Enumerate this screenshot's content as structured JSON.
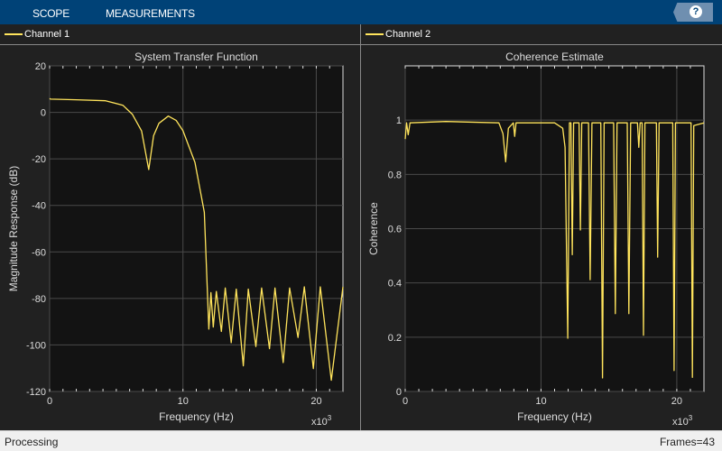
{
  "toolbar": {
    "tabs": [
      "SCOPE",
      "MEASUREMENTS"
    ],
    "help_icon": "question-icon",
    "accent": "#004277"
  },
  "legend": {
    "channel1": "Channel 1",
    "channel2": "Channel 2",
    "line_color": "#ffe45c"
  },
  "status": {
    "left": "Processing",
    "right": "Frames=43"
  },
  "chart_data": [
    {
      "type": "line",
      "title": "System Transfer Function",
      "xlabel": "Frequency (Hz)",
      "ylabel": "Magnitude Response (dB)",
      "x_multiplier": "x10",
      "x_multiplier_exp": "3",
      "xlim": [
        0,
        22
      ],
      "ylim": [
        -120,
        20
      ],
      "xticks": [
        0,
        10,
        20
      ],
      "yticks": [
        20,
        0,
        -20,
        -40,
        -60,
        -80,
        -100,
        -120
      ],
      "grid": true,
      "series": [
        {
          "x": [
            0,
            0.07,
            2,
            4.2,
            5.5,
            6.2,
            6.9,
            7.43,
            7.8,
            8.2,
            8.9,
            9.5,
            10,
            10.9,
            11.6,
            11.94,
            12.1,
            12.27,
            12.5,
            12.88,
            13.17,
            13.62,
            14.0,
            14.53,
            14.9,
            15.47,
            15.9,
            16.49,
            16.9,
            17.52,
            18.0,
            18.63,
            19.1,
            19.78,
            20.3,
            21.13,
            22
          ],
          "y": [
            6,
            5.7,
            5.4,
            5,
            3,
            -0.8,
            -8,
            -24.6,
            -10,
            -4.7,
            -1.6,
            -3.5,
            -7.9,
            -21.5,
            -43,
            -93.2,
            -77.5,
            -92.3,
            -77,
            -94.2,
            -75.5,
            -99,
            -76,
            -109,
            -76,
            -100.7,
            -75.5,
            -101.6,
            -75.5,
            -107.6,
            -75.5,
            -96.8,
            -75,
            -110.2,
            -75,
            -115.2,
            -75
          ]
        }
      ]
    },
    {
      "type": "line",
      "title": "Coherence Estimate",
      "xlabel": "Frequency (Hz)",
      "ylabel": "Coherence",
      "x_multiplier": "x10",
      "x_multiplier_exp": "3",
      "xlim": [
        0,
        22
      ],
      "ylim": [
        0,
        1.2
      ],
      "xticks": [
        0,
        10,
        20
      ],
      "yticks": [
        0,
        0.2,
        0.4,
        0.6,
        0.8,
        1
      ],
      "ytick_labels": [
        "0",
        "0.2",
        "0.4",
        "0.6",
        "0.8",
        "1"
      ],
      "grid": true,
      "series": [
        {
          "x": [
            0,
            0.1,
            0.22,
            0.35,
            3,
            6.9,
            7.2,
            7.4,
            7.6,
            7.96,
            8.06,
            8.16,
            11,
            11.6,
            11.77,
            11.97,
            12.1,
            12.2,
            12.3,
            12.4,
            12.8,
            12.9,
            13.0,
            13.5,
            13.62,
            13.75,
            14.4,
            14.53,
            14.65,
            15.35,
            15.47,
            15.6,
            16.35,
            16.47,
            16.6,
            17.1,
            17.2,
            17.3,
            17.45,
            17.55,
            17.65,
            18.5,
            18.59,
            18.7,
            19.7,
            19.8,
            19.9,
            21.05,
            21.15,
            21.25,
            22
          ],
          "y": [
            0.93,
            0.99,
            0.946,
            0.99,
            0.995,
            0.99,
            0.95,
            0.846,
            0.97,
            0.99,
            0.94,
            0.99,
            0.99,
            0.97,
            0.9,
            0.196,
            0.99,
            0.99,
            0.504,
            0.99,
            0.99,
            0.595,
            0.99,
            0.99,
            0.412,
            0.99,
            0.99,
            0.05,
            0.99,
            0.99,
            0.287,
            0.99,
            0.99,
            0.287,
            0.99,
            0.99,
            0.9,
            0.99,
            0.99,
            0.207,
            0.99,
            0.99,
            0.495,
            0.99,
            0.99,
            0.077,
            0.99,
            0.99,
            0.052,
            0.98,
            0.99
          ]
        }
      ]
    }
  ]
}
